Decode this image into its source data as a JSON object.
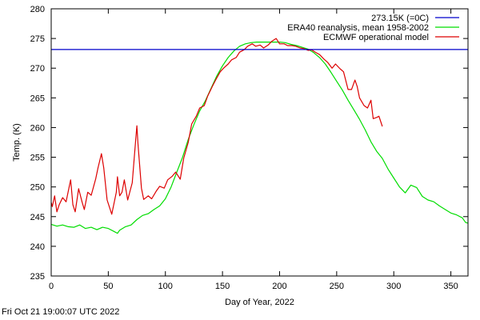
{
  "chart_data": {
    "type": "line",
    "title": "",
    "xlabel": "Day of Year, 2022",
    "ylabel": "Temp. (K)",
    "xlim": [
      0,
      365
    ],
    "ylim": [
      235,
      280
    ],
    "xticks": [
      0,
      50,
      100,
      150,
      200,
      250,
      300,
      350
    ],
    "yticks": [
      235,
      240,
      245,
      250,
      255,
      260,
      265,
      270,
      275,
      280
    ],
    "grid": false,
    "legend_position": "top-right",
    "reference_line": {
      "name": "273.15K (=0C)",
      "value": 273.15,
      "color": "#0000cc"
    },
    "series": [
      {
        "name": "ERA40 reanalysis, mean 1958-2002",
        "color": "#00dd00",
        "x": [
          0,
          5,
          10,
          15,
          20,
          25,
          30,
          35,
          40,
          45,
          50,
          55,
          58,
          60,
          65,
          70,
          75,
          80,
          85,
          90,
          95,
          100,
          105,
          110,
          115,
          120,
          125,
          130,
          135,
          140,
          145,
          150,
          155,
          160,
          165,
          170,
          175,
          180,
          185,
          190,
          195,
          200,
          205,
          210,
          215,
          220,
          225,
          230,
          235,
          240,
          245,
          250,
          255,
          260,
          265,
          270,
          275,
          280,
          285,
          290,
          295,
          300,
          305,
          310,
          315,
          320,
          325,
          330,
          335,
          340,
          345,
          350,
          355,
          360,
          363,
          365
        ],
        "y": [
          243.7,
          243.4,
          243.6,
          243.3,
          243.2,
          243.6,
          243.0,
          243.2,
          242.8,
          243.2,
          243.0,
          242.5,
          242.2,
          242.7,
          243.3,
          243.6,
          244.5,
          245.2,
          245.5,
          246.2,
          246.8,
          248.0,
          250.0,
          252.5,
          255.0,
          258.0,
          260.5,
          262.8,
          264.5,
          266.6,
          268.7,
          270.4,
          271.8,
          272.9,
          273.7,
          274.1,
          274.3,
          274.4,
          274.4,
          274.4,
          274.4,
          274.4,
          274.3,
          274.0,
          273.8,
          273.5,
          273.2,
          272.6,
          271.8,
          270.7,
          269.3,
          267.8,
          266.3,
          264.6,
          263.0,
          261.4,
          259.6,
          257.6,
          256.0,
          254.8,
          253.0,
          251.5,
          250.0,
          249.0,
          250.3,
          249.9,
          248.4,
          247.8,
          247.5,
          246.8,
          246.2,
          245.6,
          245.3,
          244.8,
          244.0,
          243.9
        ]
      },
      {
        "name": "ECMWF operational model",
        "color": "#dd0000",
        "x": [
          0,
          1,
          3,
          5,
          7,
          10,
          13,
          17,
          19,
          21,
          24,
          27,
          29,
          32,
          35,
          39,
          41,
          44,
          46,
          49,
          53,
          57,
          58,
          60,
          62,
          64,
          67,
          71,
          74,
          75,
          76,
          79,
          81,
          85,
          88,
          92,
          95,
          99,
          102,
          106,
          109,
          113,
          116,
          120,
          123,
          127,
          130,
          134,
          137,
          141,
          144,
          148,
          151,
          155,
          158,
          162,
          165,
          169,
          172,
          176,
          179,
          183,
          186,
          190,
          193,
          197,
          200,
          204,
          207,
          211,
          214,
          218,
          221,
          225,
          228,
          232,
          235,
          239,
          242,
          246,
          249,
          253,
          256,
          260,
          263,
          266,
          268,
          270,
          274,
          277,
          280,
          282,
          285,
          287,
          290
        ],
        "y": [
          247.4,
          246.7,
          248.5,
          245.8,
          247.0,
          248.2,
          247.5,
          251.2,
          247.0,
          245.8,
          249.7,
          247.5,
          246.2,
          249.1,
          248.6,
          251.4,
          253.2,
          255.6,
          253.2,
          247.8,
          245.4,
          249.1,
          251.7,
          248.5,
          249.1,
          251.2,
          247.8,
          250.7,
          257.9,
          260.3,
          257.2,
          249.8,
          247.9,
          248.5,
          248.0,
          249.3,
          250.1,
          249.8,
          251.2,
          251.8,
          252.5,
          251.3,
          254.8,
          257.5,
          260.6,
          261.9,
          263.3,
          263.7,
          265.3,
          266.9,
          268.0,
          269.4,
          270.0,
          270.7,
          271.4,
          271.8,
          272.7,
          273.1,
          273.7,
          274.1,
          273.7,
          273.9,
          273.4,
          273.9,
          274.5,
          275.0,
          274.1,
          274.1,
          273.8,
          273.8,
          273.7,
          273.4,
          273.3,
          273.0,
          273.1,
          272.6,
          272.3,
          271.5,
          271.0,
          270.0,
          270.7,
          269.9,
          269.4,
          266.4,
          266.4,
          268.0,
          266.9,
          265.0,
          263.7,
          263.3,
          264.6,
          261.5,
          261.7,
          261.9,
          260.2
        ]
      }
    ]
  },
  "footer": {
    "timestamp": "Fri Oct 21 19:00:07 UTC 2022"
  }
}
